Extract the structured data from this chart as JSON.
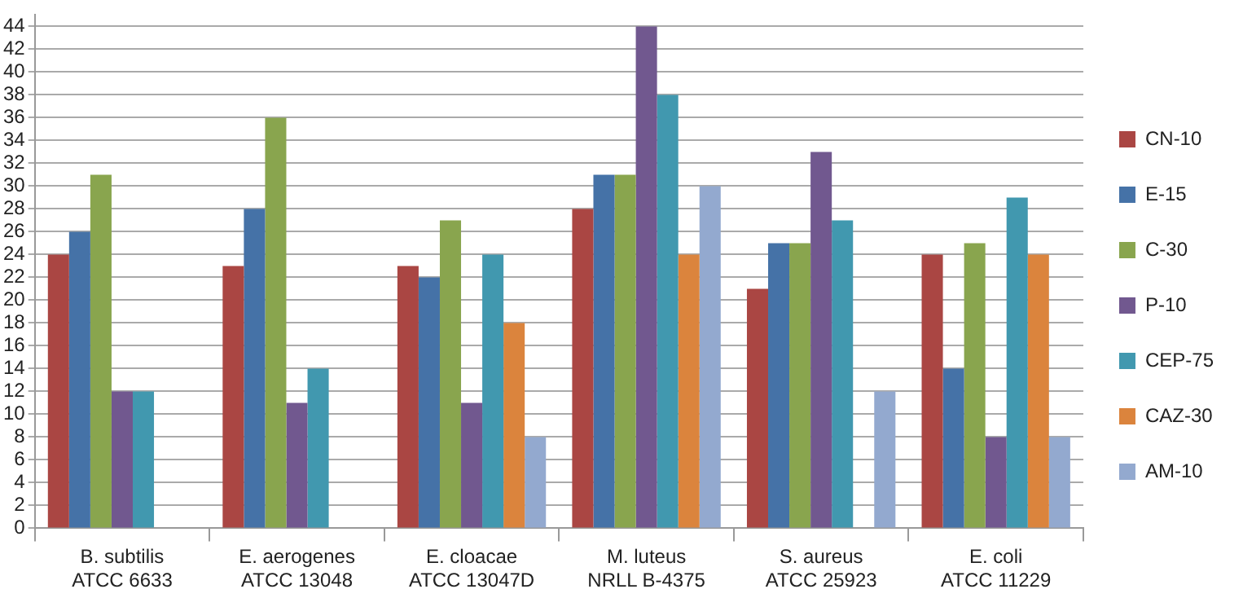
{
  "chart_data": {
    "type": "bar",
    "categories": [
      "B. subtilis\nATCC 6633",
      "E. aerogenes\nATCC 13048",
      "E. cloacae\nATCC 13047D",
      "M. luteus\nNRLL B-4375",
      "S. aureus\nATCC 25923",
      "E. coli\nATCC 11229"
    ],
    "series": [
      {
        "name": "CN-10",
        "color": "#aa4643",
        "values": [
          24,
          23,
          23,
          28,
          21,
          24
        ]
      },
      {
        "name": "E-15",
        "color": "#4572a7",
        "values": [
          26,
          28,
          22,
          31,
          25,
          14
        ]
      },
      {
        "name": "C-30",
        "color": "#89a54e",
        "values": [
          31,
          36,
          27,
          31,
          25,
          25
        ]
      },
      {
        "name": "P-10",
        "color": "#71588f",
        "values": [
          12,
          11,
          11,
          44,
          33,
          8
        ]
      },
      {
        "name": "CEP-75",
        "color": "#4198af",
        "values": [
          12,
          14,
          24,
          38,
          27,
          29
        ]
      },
      {
        "name": "CAZ-30",
        "color": "#db843d",
        "values": [
          null,
          null,
          18,
          24,
          null,
          24
        ]
      },
      {
        "name": "AM-10",
        "color": "#93a9cf",
        "values": [
          null,
          null,
          8,
          30,
          12,
          8
        ]
      }
    ],
    "ylim": [
      0,
      45
    ],
    "yticks": [
      0,
      2,
      4,
      6,
      8,
      10,
      12,
      14,
      16,
      18,
      20,
      22,
      24,
      26,
      28,
      30,
      32,
      34,
      36,
      38,
      40,
      42,
      44
    ],
    "grid": "y",
    "legend": "right"
  }
}
